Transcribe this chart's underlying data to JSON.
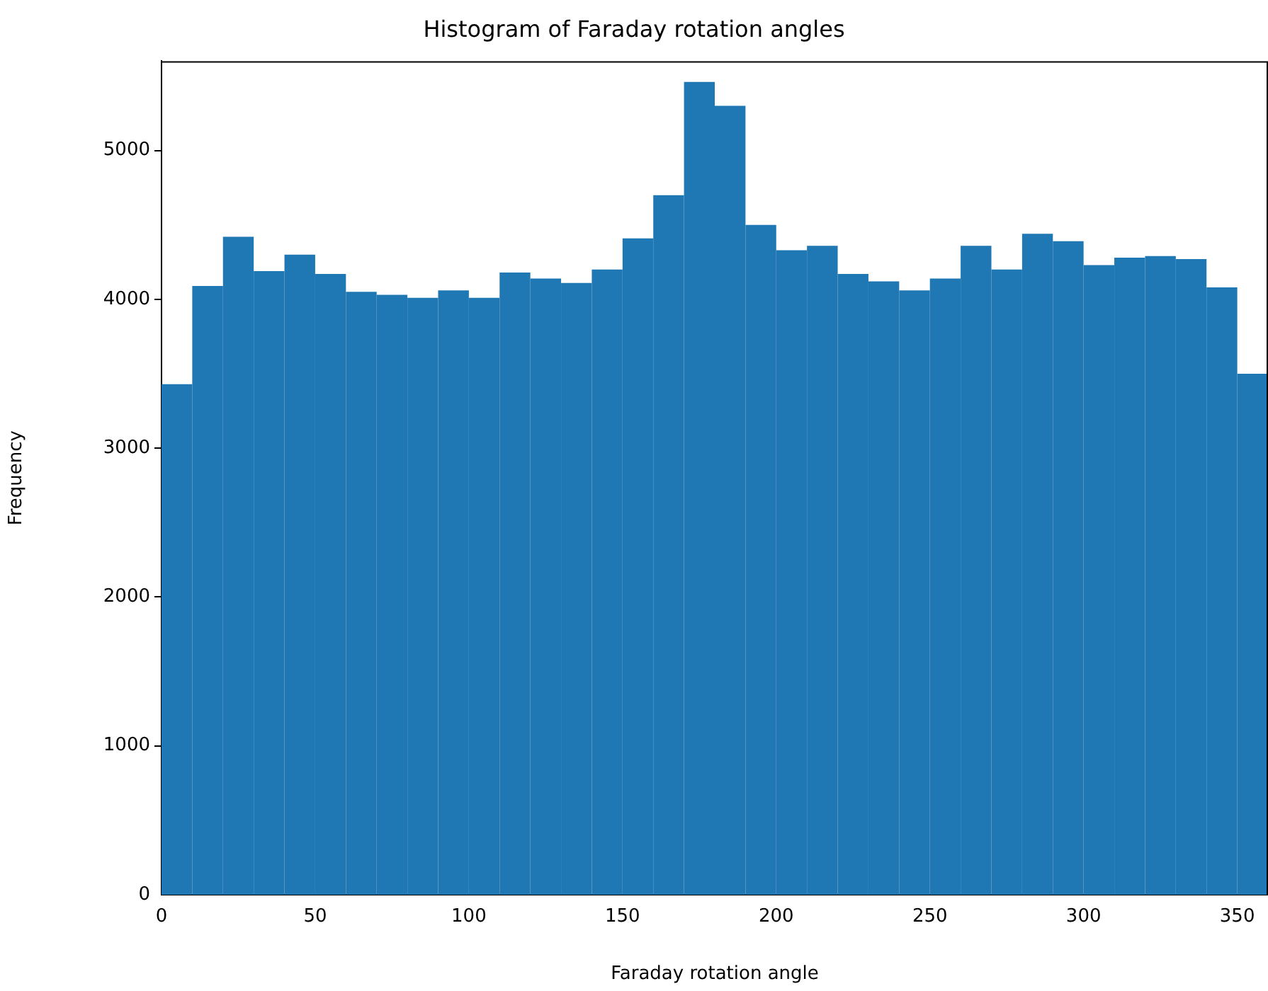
{
  "chart_data": {
    "type": "histogram",
    "title": "Histogram of Faraday rotation angles",
    "xlabel": "Faraday rotation angle",
    "ylabel": "Frequency",
    "bins": [
      0,
      10,
      20,
      30,
      40,
      50,
      60,
      70,
      80,
      90,
      100,
      110,
      120,
      130,
      140,
      150,
      160,
      170,
      180,
      190,
      200,
      210,
      220,
      230,
      240,
      250,
      260,
      270,
      280,
      290,
      300,
      310,
      320,
      330,
      340,
      350,
      360
    ],
    "values": [
      3430,
      4090,
      4420,
      4190,
      4300,
      4170,
      4050,
      4030,
      4010,
      4060,
      4010,
      4180,
      4140,
      4110,
      4200,
      4410,
      4700,
      5460,
      5300,
      4500,
      4330,
      4360,
      4170,
      4120,
      4060,
      4140,
      4360,
      4200,
      4440,
      4390,
      4230,
      4280,
      4290,
      4270,
      4080,
      3500
    ],
    "color": "#1f77b4",
    "xlim": [
      0,
      360
    ],
    "xticks": [
      0,
      50,
      100,
      150,
      200,
      250,
      300,
      350
    ],
    "ylim": [
      0,
      5600
    ],
    "yticks": [
      0,
      1000,
      2000,
      3000,
      4000,
      5000
    ],
    "grid": false,
    "legend": false
  }
}
